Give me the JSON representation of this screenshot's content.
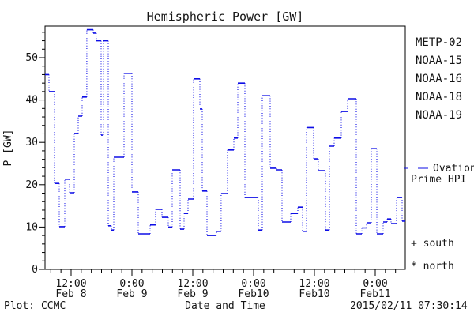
{
  "chart_data": {
    "type": "line",
    "step_style": "post",
    "title": "Hemispheric Power [GW]",
    "ylabel": "P [GW]",
    "xlabel": "Date and Time",
    "ylim": [
      0,
      57.5
    ],
    "y_major_ticks": [
      0,
      10,
      20,
      30,
      40,
      50
    ],
    "y_minor_step_gw": 2,
    "xlim_hours": [
      6.86,
      77.92
    ],
    "x_axis_note": "hours since 2015 Feb 8 00:00",
    "x_minor_step_hours": 2,
    "x_major_ticks": [
      {
        "t": 12,
        "time": "12:00",
        "date": "Feb 8"
      },
      {
        "t": 24,
        "time": "0:00",
        "date": "Feb 9"
      },
      {
        "t": 36,
        "time": "12:00",
        "date": "Feb 9"
      },
      {
        "t": 48,
        "time": "0:00",
        "date": "Feb10"
      },
      {
        "t": 60,
        "time": "12:00",
        "date": "Feb10"
      },
      {
        "t": 72,
        "time": "0:00",
        "date": "Feb11"
      }
    ],
    "grid": false,
    "legend_position": "right",
    "series": [
      {
        "name": "Ovation Prime HPI",
        "color": "#0e0ee6",
        "line_style": "solid horizontal steps, dotted vertical connectors",
        "steps": [
          [
            6.86,
            7.64,
            46.0
          ],
          [
            7.64,
            8.73,
            42.0
          ],
          [
            8.73,
            9.66,
            20.3
          ],
          [
            9.66,
            10.75,
            10.1
          ],
          [
            10.75,
            11.69,
            21.3
          ],
          [
            11.69,
            12.62,
            18.1
          ],
          [
            12.62,
            13.4,
            32.1
          ],
          [
            13.4,
            14.18,
            36.2
          ],
          [
            14.18,
            15.11,
            40.7
          ],
          [
            15.11,
            16.36,
            56.6
          ],
          [
            16.36,
            16.98,
            55.8
          ],
          [
            16.98,
            17.92,
            54.0
          ],
          [
            17.92,
            18.38,
            31.7
          ],
          [
            18.38,
            19.32,
            54.0
          ],
          [
            19.32,
            19.94,
            10.3
          ],
          [
            19.94,
            20.41,
            9.3
          ],
          [
            20.41,
            22.44,
            26.5
          ],
          [
            22.44,
            24.0,
            46.3
          ],
          [
            24.0,
            25.25,
            18.3
          ],
          [
            25.25,
            27.58,
            8.4
          ],
          [
            27.58,
            28.67,
            10.5
          ],
          [
            28.67,
            29.92,
            14.2
          ],
          [
            29.92,
            31.17,
            12.3
          ],
          [
            31.17,
            31.95,
            10.0
          ],
          [
            31.95,
            33.51,
            23.5
          ],
          [
            33.51,
            34.29,
            9.5
          ],
          [
            34.29,
            35.07,
            13.2
          ],
          [
            35.07,
            36.16,
            16.6
          ],
          [
            36.16,
            37.4,
            45.0
          ],
          [
            37.4,
            37.87,
            37.9
          ],
          [
            37.87,
            38.81,
            18.5
          ],
          [
            38.81,
            40.67,
            8.0
          ],
          [
            40.67,
            41.6,
            9.0
          ],
          [
            41.6,
            42.86,
            17.9
          ],
          [
            42.86,
            44.1,
            28.2
          ],
          [
            44.1,
            44.88,
            31.0
          ],
          [
            44.88,
            46.28,
            44.0
          ],
          [
            46.28,
            48.93,
            17.0
          ],
          [
            48.93,
            49.71,
            9.3
          ],
          [
            49.71,
            51.27,
            41.0
          ],
          [
            51.27,
            52.52,
            23.9
          ],
          [
            52.52,
            53.61,
            23.5
          ],
          [
            53.61,
            55.32,
            11.2
          ],
          [
            55.32,
            56.72,
            13.2
          ],
          [
            56.72,
            57.66,
            14.7
          ],
          [
            57.66,
            58.44,
            9.0
          ],
          [
            58.44,
            59.84,
            33.5
          ],
          [
            59.84,
            60.78,
            26.1
          ],
          [
            60.78,
            62.18,
            23.3
          ],
          [
            62.18,
            62.96,
            9.3
          ],
          [
            62.96,
            63.89,
            29.1
          ],
          [
            63.89,
            65.3,
            31.0
          ],
          [
            65.3,
            66.54,
            37.3
          ],
          [
            66.54,
            68.26,
            40.3
          ],
          [
            68.26,
            69.35,
            8.4
          ],
          [
            69.35,
            70.28,
            9.8
          ],
          [
            70.28,
            71.22,
            11.0
          ],
          [
            71.22,
            72.31,
            28.5
          ],
          [
            72.31,
            73.56,
            8.4
          ],
          [
            73.56,
            74.33,
            11.2
          ],
          [
            74.33,
            75.11,
            11.9
          ],
          [
            75.11,
            76.2,
            10.8
          ],
          [
            76.2,
            77.29,
            17.0
          ],
          [
            77.29,
            77.92,
            11.4
          ]
        ]
      }
    ],
    "legend_satellites": [
      {
        "label": "METP-02",
        "color": "#1a1a1a"
      },
      {
        "label": "NOAA-15",
        "color": "#0000f0"
      },
      {
        "label": "NOAA-16",
        "color": "#3fc0f0"
      },
      {
        "label": "NOAA-18",
        "color": "#63e07a"
      },
      {
        "label": "NOAA-19",
        "color": "#ffa533"
      }
    ],
    "markers": [
      {
        "symbol": "+",
        "label": "south"
      },
      {
        "symbol": "*",
        "label": "north"
      }
    ]
  },
  "legend": {
    "ovation_line1": "Ovation",
    "ovation_line2": "Prime HPI"
  },
  "footer": {
    "left": "Plot: CCMC",
    "right": "2015/02/11 07:30:14"
  }
}
